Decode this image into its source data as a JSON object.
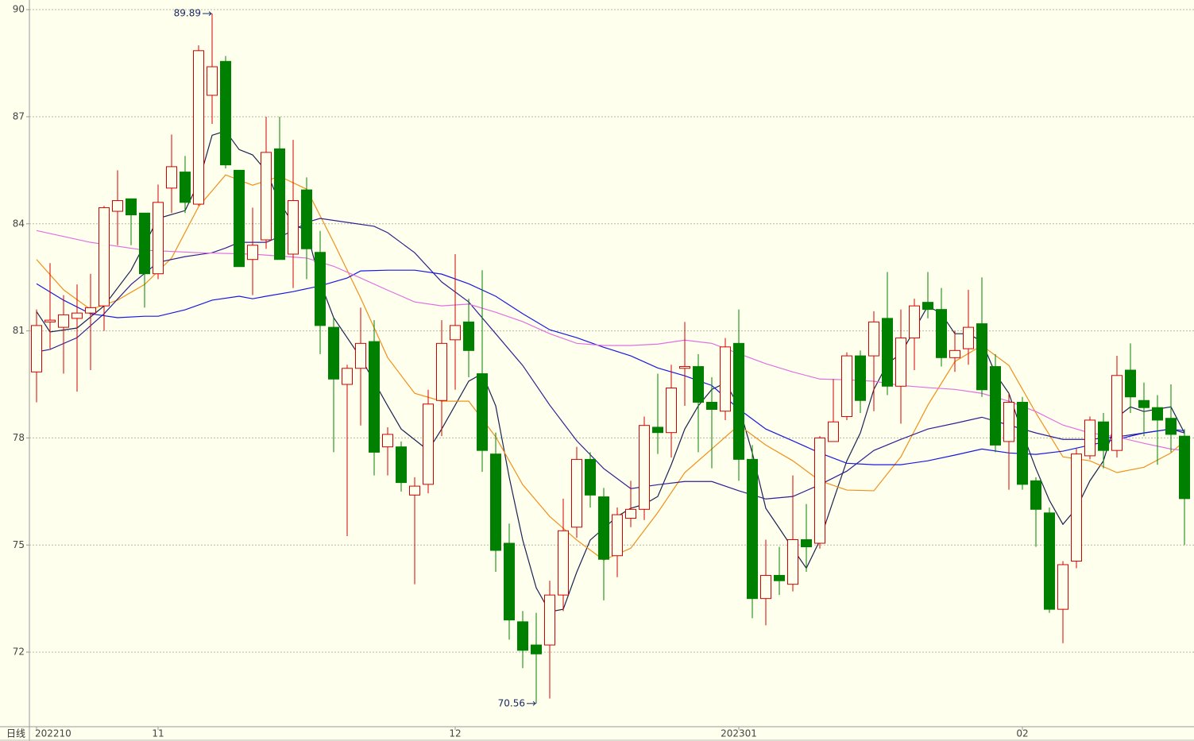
{
  "chart_data": {
    "type": "candlestick",
    "period_label": "日线",
    "categories": [
      "202210",
      null,
      null,
      null,
      null,
      null,
      null,
      null,
      null,
      "11",
      null,
      null,
      null,
      null,
      null,
      null,
      null,
      null,
      null,
      null,
      null,
      null,
      null,
      null,
      null,
      null,
      null,
      null,
      null,
      null,
      null,
      "12",
      null,
      null,
      null,
      null,
      null,
      null,
      null,
      null,
      null,
      null,
      null,
      null,
      null,
      null,
      null,
      null,
      null,
      null,
      null,
      null,
      "202301",
      null,
      null,
      null,
      null,
      null,
      null,
      null,
      null,
      null,
      null,
      null,
      null,
      null,
      null,
      null,
      null,
      null,
      null,
      null,
      null,
      "02",
      null,
      null,
      null,
      null,
      null,
      null,
      null,
      null,
      null,
      null,
      null,
      null
    ],
    "open": [
      79.85,
      81.25,
      81.1,
      81.35,
      81.5,
      81.7,
      84.35,
      84.7,
      84.3,
      82.6,
      85.0,
      85.45,
      84.55,
      87.6,
      88.55,
      85.5,
      83.0,
      83.55,
      86.1,
      83.15,
      84.95,
      83.2,
      81.1,
      79.5,
      79.95,
      80.7,
      77.75,
      77.75,
      76.4,
      76.7,
      79.05,
      80.75,
      81.25,
      79.8,
      77.55,
      75.05,
      72.85,
      72.2,
      72.2,
      73.6,
      75.5,
      77.4,
      76.35,
      74.7,
      75.75,
      76.0,
      78.3,
      78.15,
      79.95,
      80.0,
      79.0,
      78.75,
      80.65,
      77.4,
      73.5,
      74.15,
      73.9,
      75.15,
      75.05,
      77.9,
      78.6,
      80.3,
      80.3,
      81.35,
      79.45,
      80.8,
      81.8,
      81.6,
      80.25,
      80.5,
      81.2,
      80.0,
      77.9,
      79.0,
      76.8,
      75.9,
      73.2,
      74.55,
      77.5,
      78.45,
      77.65,
      79.9,
      79.05,
      78.85,
      78.55,
      78.05
    ],
    "high": [
      81.6,
      82.9,
      82.0,
      82.3,
      82.6,
      84.5,
      85.5,
      84.7,
      84.3,
      85.1,
      86.5,
      85.9,
      89.0,
      89.89,
      88.7,
      85.5,
      84.45,
      87.0,
      87.0,
      86.35,
      85.3,
      83.8,
      81.35,
      80.05,
      81.65,
      81.3,
      78.3,
      77.9,
      76.9,
      79.35,
      81.3,
      83.15,
      81.9,
      82.7,
      78.15,
      75.6,
      73.15,
      73.1,
      74.0,
      76.3,
      77.75,
      77.6,
      76.6,
      76.05,
      76.8,
      78.6,
      79.8,
      80.05,
      81.25,
      80.35,
      79.7,
      80.8,
      81.6,
      77.8,
      75.15,
      74.95,
      76.95,
      76.15,
      78.05,
      79.65,
      80.4,
      80.45,
      81.55,
      82.65,
      81.6,
      81.9,
      82.65,
      82.2,
      81.0,
      82.15,
      82.5,
      80.35,
      79.25,
      79.15,
      76.9,
      76.05,
      74.55,
      77.7,
      78.6,
      78.7,
      80.3,
      80.65,
      79.55,
      79.2,
      79.5,
      78.25
    ],
    "low": [
      79.0,
      80.5,
      79.8,
      79.3,
      79.9,
      81.0,
      83.4,
      83.4,
      81.65,
      82.45,
      84.3,
      84.3,
      84.5,
      86.8,
      85.55,
      82.8,
      82.0,
      83.3,
      83.0,
      82.2,
      82.45,
      80.35,
      77.6,
      75.25,
      78.35,
      76.95,
      76.95,
      76.5,
      73.9,
      76.45,
      78.05,
      79.35,
      79.7,
      77.05,
      74.25,
      72.35,
      71.55,
      70.56,
      70.7,
      73.15,
      75.2,
      76.05,
      73.45,
      74.1,
      75.5,
      75.7,
      77.55,
      77.45,
      78.9,
      77.6,
      77.15,
      78.5,
      76.8,
      72.95,
      72.75,
      73.6,
      73.7,
      74.25,
      74.9,
      77.9,
      78.5,
      78.7,
      78.75,
      79.2,
      78.4,
      79.9,
      81.35,
      80.0,
      79.85,
      80.05,
      79.15,
      77.6,
      76.55,
      76.55,
      74.95,
      73.1,
      72.25,
      74.35,
      77.4,
      77.15,
      77.45,
      78.7,
      78.05,
      77.25,
      77.6,
      75.0
    ],
    "close": [
      81.15,
      81.3,
      81.45,
      81.5,
      81.65,
      84.45,
      84.65,
      84.25,
      82.6,
      84.6,
      85.6,
      84.6,
      88.85,
      88.4,
      85.65,
      82.8,
      83.4,
      86.0,
      83.0,
      84.65,
      83.3,
      81.15,
      79.65,
      79.95,
      80.65,
      77.6,
      78.1,
      76.75,
      76.65,
      78.95,
      80.65,
      81.15,
      80.45,
      77.65,
      74.85,
      72.9,
      72.05,
      71.95,
      73.6,
      75.4,
      77.4,
      76.4,
      74.6,
      75.85,
      76.0,
      78.35,
      78.15,
      79.4,
      80.0,
      79.0,
      78.8,
      80.55,
      77.4,
      73.5,
      74.15,
      74.0,
      75.15,
      74.95,
      78.0,
      78.45,
      80.3,
      79.05,
      81.25,
      79.45,
      80.8,
      81.7,
      81.6,
      80.25,
      80.45,
      81.1,
      79.35,
      77.8,
      79.0,
      76.7,
      76.0,
      73.2,
      74.45,
      77.55,
      78.5,
      77.65,
      79.75,
      79.15,
      78.85,
      78.5,
      78.1,
      76.3
    ],
    "up_color": "#d40000",
    "down_color": "#008000",
    "series": [
      {
        "color": "#1a2350",
        "x": [
          0,
          1,
          3,
          5,
          7,
          9,
          11,
          12,
          13,
          14,
          15,
          16,
          17,
          18,
          19,
          20,
          21,
          22,
          24,
          26,
          27,
          29,
          30,
          32,
          33,
          34,
          35,
          36,
          37,
          38,
          39,
          40,
          41,
          43,
          44,
          45,
          46,
          47,
          48,
          49,
          50,
          51,
          52,
          53,
          54,
          55,
          56,
          57,
          58,
          59,
          60,
          61,
          62,
          63,
          64,
          65,
          66,
          67,
          68,
          69,
          70,
          71,
          72,
          73,
          74,
          75,
          76,
          77,
          78,
          79,
          80,
          81,
          82,
          83,
          84,
          85
        ],
        "values": [
          81.54,
          80.97,
          81.08,
          81.7,
          82.7,
          84.15,
          84.37,
          85.15,
          86.48,
          86.6,
          86.08,
          85.93,
          85.48,
          84.6,
          84.0,
          83.8,
          82.37,
          81.37,
          80.25,
          78.9,
          78.25,
          77.65,
          78.25,
          79.59,
          79.8,
          78.9,
          76.9,
          75.14,
          73.8,
          73.13,
          73.2,
          74.24,
          75.14,
          75.8,
          76.03,
          76.14,
          76.36,
          77.25,
          78.25,
          78.9,
          79.36,
          79.54,
          78.9,
          77.58,
          76.03,
          75.47,
          74.9,
          74.35,
          75.13,
          76.25,
          77.36,
          78.14,
          79.36,
          80.08,
          80.36,
          81.03,
          81.7,
          81.48,
          80.92,
          80.92,
          80.7,
          79.8,
          79.25,
          78.14,
          77.14,
          76.25,
          75.58,
          76.03,
          76.8,
          77.36,
          78.58,
          78.87,
          78.74,
          78.81,
          78.87,
          78.14
        ]
      },
      {
        "color": "#f0901a",
        "x": [
          0,
          2,
          4,
          6,
          8,
          10,
          12,
          14,
          16,
          18,
          20,
          22,
          24,
          26,
          28,
          30,
          32,
          34,
          36,
          38,
          40,
          42,
          44,
          46,
          48,
          50,
          52,
          54,
          56,
          58,
          60,
          62,
          64,
          66,
          68,
          70,
          72,
          74,
          76,
          78,
          80,
          82,
          84,
          85
        ],
        "values": [
          83.0,
          82.15,
          81.6,
          81.86,
          82.3,
          83.04,
          84.48,
          85.37,
          85.08,
          85.33,
          84.97,
          83.48,
          81.92,
          80.25,
          79.25,
          79.03,
          79.03,
          78.03,
          76.69,
          75.8,
          75.14,
          74.58,
          74.91,
          75.91,
          77.03,
          77.69,
          78.36,
          77.8,
          77.36,
          76.8,
          76.54,
          76.52,
          77.47,
          78.92,
          80.14,
          80.59,
          80.03,
          78.7,
          77.47,
          77.36,
          77.03,
          77.18,
          77.58,
          77.92
        ]
      },
      {
        "color": "#302090",
        "x": [
          0,
          1,
          3,
          5,
          7,
          9,
          11,
          13,
          14,
          15,
          17,
          19,
          20,
          21,
          23,
          25,
          26,
          28,
          30,
          32,
          34,
          36,
          38,
          40,
          42,
          44,
          46,
          48,
          50,
          52,
          54,
          56,
          58,
          60,
          62,
          64,
          66,
          68,
          70,
          72,
          74,
          76,
          78,
          80,
          82,
          84,
          85
        ],
        "values": [
          80.41,
          80.48,
          80.81,
          81.48,
          82.3,
          82.92,
          83.08,
          83.19,
          83.32,
          83.48,
          83.48,
          83.8,
          84.04,
          84.15,
          84.04,
          83.93,
          83.75,
          83.19,
          82.37,
          81.81,
          80.92,
          80.03,
          78.92,
          77.92,
          77.14,
          76.58,
          76.69,
          76.78,
          76.78,
          76.52,
          76.29,
          76.36,
          76.69,
          77.07,
          77.65,
          77.96,
          78.25,
          78.41,
          78.58,
          78.36,
          78.14,
          77.96,
          77.96,
          78.03,
          78.14,
          78.25,
          78.14
        ]
      },
      {
        "color": "#1818e0",
        "x": [
          0,
          2,
          4,
          6,
          8,
          9,
          11,
          13,
          15,
          16,
          17,
          19,
          21,
          23,
          24,
          26,
          28,
          30,
          32,
          34,
          36,
          38,
          40,
          42,
          44,
          46,
          48,
          50,
          52,
          54,
          56,
          58,
          60,
          62,
          64,
          66,
          68,
          70,
          72,
          74,
          76,
          78,
          80,
          82,
          84,
          85
        ],
        "values": [
          82.32,
          81.86,
          81.48,
          81.37,
          81.41,
          81.41,
          81.59,
          81.86,
          81.97,
          81.9,
          81.97,
          82.1,
          82.26,
          82.48,
          82.68,
          82.7,
          82.7,
          82.59,
          82.32,
          81.97,
          81.48,
          81.03,
          80.81,
          80.54,
          80.3,
          79.96,
          79.74,
          79.47,
          78.81,
          78.25,
          77.92,
          77.58,
          77.29,
          77.25,
          77.25,
          77.36,
          77.52,
          77.69,
          77.58,
          77.54,
          77.63,
          77.8,
          77.96,
          78.14,
          78.25,
          78.2
        ]
      },
      {
        "color": "#e070e0",
        "x": [
          0,
          4,
          8,
          12,
          16,
          20,
          22,
          24,
          26,
          28,
          30,
          32,
          34,
          36,
          38,
          40,
          42,
          44,
          46,
          48,
          50,
          52,
          54,
          56,
          58,
          60,
          62,
          64,
          66,
          68,
          70,
          72,
          74,
          76,
          78,
          80,
          82,
          84,
          85
        ],
        "values": [
          83.81,
          83.48,
          83.26,
          83.19,
          83.15,
          83.04,
          82.81,
          82.48,
          82.14,
          81.81,
          81.7,
          81.75,
          81.52,
          81.26,
          80.92,
          80.65,
          80.59,
          80.59,
          80.63,
          80.74,
          80.65,
          80.36,
          80.08,
          79.85,
          79.65,
          79.63,
          79.59,
          79.47,
          79.41,
          79.36,
          79.25,
          79.03,
          78.74,
          78.36,
          78.14,
          78.03,
          77.85,
          77.69,
          77.65
        ]
      }
    ],
    "ylim": [
      69.91,
      90.27
    ],
    "yticks": [
      72,
      75,
      78,
      81,
      84,
      87,
      90
    ],
    "grid": true
  }
}
